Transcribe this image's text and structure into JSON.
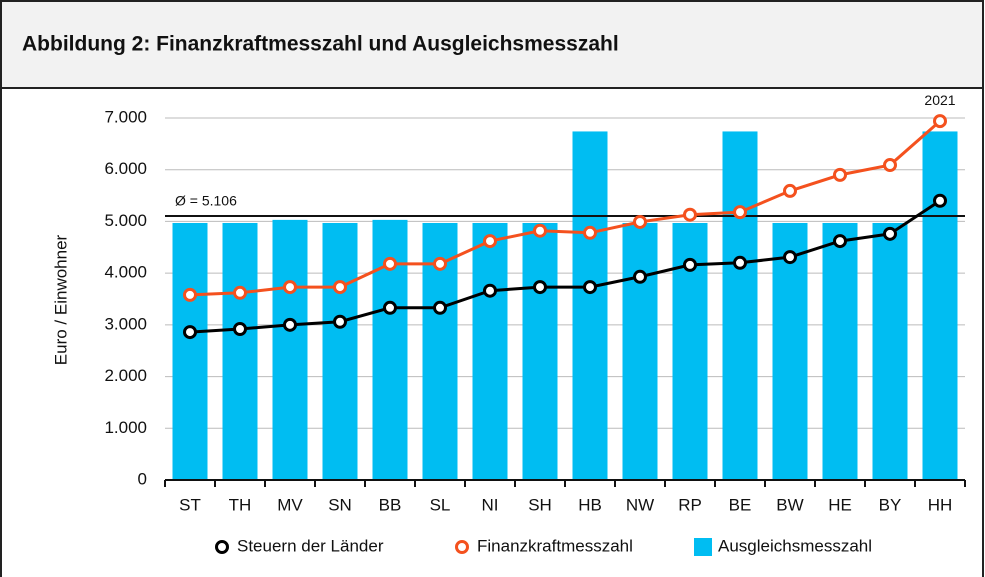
{
  "chart_data": {
    "type": "combo",
    "title": "Abbildung 2: Finanzkraftmesszahl und Ausgleichsmesszahl",
    "y_label": "Euro / Einwohner",
    "annotation": "2021",
    "categories": [
      "ST",
      "TH",
      "MV",
      "SN",
      "BB",
      "SL",
      "NI",
      "SH",
      "HB",
      "NW",
      "RP",
      "BE",
      "BW",
      "HE",
      "BY",
      "HH"
    ],
    "series": [
      {
        "name": "Steuern der Länder",
        "type": "line",
        "color": "#000000",
        "values": [
          2860,
          2920,
          3000,
          3060,
          3330,
          3330,
          3660,
          3730,
          3730,
          3930,
          4160,
          4200,
          4310,
          4620,
          4760,
          5400
        ]
      },
      {
        "name": "Finanzkraftmesszahl",
        "type": "line",
        "color": "#f4511e",
        "values": [
          3580,
          3620,
          3730,
          3730,
          4180,
          4180,
          4620,
          4820,
          4780,
          4990,
          5130,
          5180,
          5590,
          5900,
          6090,
          6940
        ]
      },
      {
        "name": "Ausgleichsmesszahl",
        "type": "bar",
        "color": "#00bdf2",
        "values": [
          4970,
          4970,
          5030,
          4970,
          5030,
          4970,
          4970,
          4970,
          6740,
          4970,
          4970,
          6740,
          4970,
          4970,
          4970,
          6740
        ]
      }
    ],
    "reference_line": {
      "value": 5106,
      "label": "Ø = 5.106"
    },
    "ylim": [
      0,
      7000
    ],
    "yticks": [
      0,
      {
        "value": 1000,
        "label": "1.000"
      },
      {
        "value": 2000,
        "label": "2.000"
      },
      {
        "value": 3000,
        "label": "3.000"
      },
      {
        "value": 4000,
        "label": "4.000"
      },
      {
        "value": 5000,
        "label": "5.000"
      },
      {
        "value": 6000,
        "label": "6.000"
      },
      {
        "value": 7000,
        "label": "7.000"
      }
    ],
    "grid": true
  }
}
